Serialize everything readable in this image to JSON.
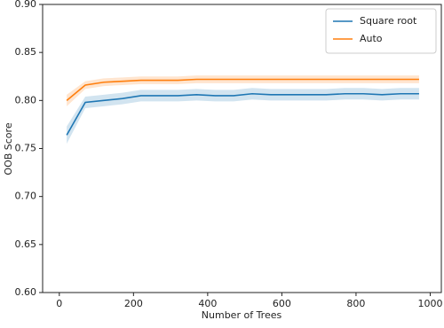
{
  "chart_data": {
    "type": "line",
    "xlabel": "Number of Trees",
    "ylabel": "OOB Score",
    "x": [
      20,
      70,
      120,
      170,
      220,
      270,
      320,
      370,
      420,
      470,
      520,
      570,
      620,
      670,
      720,
      770,
      820,
      870,
      920,
      970
    ],
    "series": [
      {
        "name": "Square root",
        "color": "#1f77b4",
        "values": [
          0.764,
          0.798,
          0.8,
          0.802,
          0.805,
          0.805,
          0.805,
          0.806,
          0.805,
          0.805,
          0.807,
          0.806,
          0.806,
          0.806,
          0.806,
          0.807,
          0.807,
          0.806,
          0.807,
          0.807
        ],
        "lower": [
          0.755,
          0.792,
          0.794,
          0.796,
          0.799,
          0.799,
          0.799,
          0.8,
          0.799,
          0.799,
          0.801,
          0.8,
          0.8,
          0.8,
          0.8,
          0.801,
          0.801,
          0.8,
          0.801,
          0.801
        ],
        "upper": [
          0.773,
          0.804,
          0.806,
          0.808,
          0.811,
          0.811,
          0.811,
          0.812,
          0.811,
          0.811,
          0.813,
          0.812,
          0.812,
          0.812,
          0.812,
          0.813,
          0.813,
          0.812,
          0.813,
          0.813
        ]
      },
      {
        "name": "Auto",
        "color": "#ff7f0e",
        "values": [
          0.8,
          0.816,
          0.819,
          0.82,
          0.821,
          0.821,
          0.821,
          0.822,
          0.822,
          0.822,
          0.822,
          0.822,
          0.822,
          0.822,
          0.822,
          0.822,
          0.822,
          0.822,
          0.822,
          0.822
        ],
        "lower": [
          0.794,
          0.812,
          0.815,
          0.816,
          0.817,
          0.817,
          0.817,
          0.818,
          0.818,
          0.818,
          0.818,
          0.818,
          0.818,
          0.818,
          0.818,
          0.818,
          0.818,
          0.818,
          0.818,
          0.818
        ],
        "upper": [
          0.806,
          0.82,
          0.823,
          0.824,
          0.825,
          0.825,
          0.825,
          0.826,
          0.826,
          0.826,
          0.826,
          0.826,
          0.826,
          0.826,
          0.826,
          0.826,
          0.826,
          0.826,
          0.826,
          0.826
        ]
      }
    ],
    "xlim": [
      -45,
      1030
    ],
    "xticks": [
      0,
      200,
      400,
      600,
      800,
      1000
    ],
    "ylim": [
      0.6,
      0.9
    ],
    "yticks": [
      {
        "value": 0.6,
        "label": "0.60"
      },
      {
        "value": 0.65,
        "label": "0.65"
      },
      {
        "value": 0.7,
        "label": "0.70"
      },
      {
        "value": 0.75,
        "label": "0.75"
      },
      {
        "value": 0.8,
        "label": "0.80"
      },
      {
        "value": 0.85,
        "label": "0.85"
      },
      {
        "value": 0.9,
        "label": "0.90"
      }
    ],
    "legend": "upper right"
  }
}
